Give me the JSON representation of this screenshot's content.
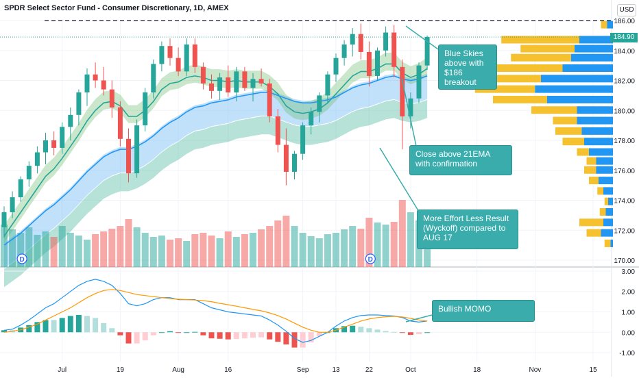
{
  "header": {
    "title": "SPDR Select Sector Fund - Consumer Discretionary, 1D, AMEX",
    "currency": "USD",
    "last_price": "184.90"
  },
  "callouts": [
    {
      "id": "blue-skies",
      "text": "Blue Skies above with $186 breakout"
    },
    {
      "id": "close-above",
      "text": "Close above 21EMA with confirmation"
    },
    {
      "id": "effort",
      "text": "More Effort Less Result (Wyckoff) compared to AUG 17"
    },
    {
      "id": "momo",
      "text": "Bullish MOMO"
    }
  ],
  "colors": {
    "up": "#26a69a",
    "down": "#ef5350",
    "ema_fast": "#26a69a",
    "ema_slow": "#2196f3",
    "macd": "#2196f3",
    "signal": "#ff9800",
    "vp_a": "#f5c12e",
    "vp_b": "#2196f3",
    "callout": "#3aacac"
  },
  "chart_data": [
    {
      "type": "candlestick",
      "title": "SPDR Select Sector Fund - Consumer Discretionary, 1D, AMEX",
      "y_ticks": [
        "186.00",
        "184.00",
        "182.00",
        "180.00",
        "178.00",
        "176.00",
        "174.00",
        "172.00",
        "170.00"
      ],
      "ylim": [
        169.8,
        186.4
      ],
      "x_ticks": [
        {
          "label": "Jul",
          "i": 7
        },
        {
          "label": "19",
          "i": 14
        },
        {
          "label": "Aug",
          "i": 21
        },
        {
          "label": "16",
          "i": 27
        },
        {
          "label": "Sep",
          "i": 36
        },
        {
          "label": "13",
          "i": 40
        },
        {
          "label": "22",
          "i": 44
        },
        {
          "label": "Oct",
          "i": 49
        },
        {
          "label": "18",
          "i": 57
        },
        {
          "label": "Nov",
          "i": 64
        },
        {
          "label": "15",
          "i": 71
        }
      ],
      "dividend_markers": [
        1,
        43
      ],
      "resistance": 186,
      "ohlc": [
        [
          172.2,
          173.6,
          171.5,
          173.2
        ],
        [
          173.2,
          174.6,
          172.8,
          174.2
        ],
        [
          174.2,
          175.6,
          173.9,
          175.4
        ],
        [
          175.4,
          176.6,
          174.9,
          176.3
        ],
        [
          176.3,
          177.6,
          175.8,
          177.2
        ],
        [
          177.2,
          178.5,
          176.4,
          178.0
        ],
        [
          178.0,
          178.6,
          177.0,
          177.5
        ],
        [
          177.5,
          179.2,
          177.1,
          178.9
        ],
        [
          178.9,
          180.2,
          178.0,
          179.7
        ],
        [
          179.7,
          181.4,
          179.0,
          181.2
        ],
        [
          181.2,
          182.8,
          180.3,
          182.4
        ],
        [
          182.4,
          183.2,
          181.5,
          182.0
        ],
        [
          182.0,
          182.9,
          181.0,
          181.4
        ],
        [
          181.4,
          182.0,
          179.5,
          180.2
        ],
        [
          180.2,
          180.6,
          177.6,
          178.1
        ],
        [
          178.1,
          178.8,
          175.2,
          175.8
        ],
        [
          175.8,
          179.4,
          175.5,
          179.0
        ],
        [
          179.0,
          181.5,
          178.6,
          181.2
        ],
        [
          181.2,
          183.4,
          180.8,
          183.1
        ],
        [
          183.1,
          184.6,
          182.6,
          184.3
        ],
        [
          184.3,
          184.8,
          183.0,
          183.5
        ],
        [
          183.5,
          184.2,
          182.3,
          182.6
        ],
        [
          182.6,
          184.8,
          182.3,
          184.4
        ],
        [
          184.4,
          184.8,
          182.5,
          182.9
        ],
        [
          182.9,
          183.2,
          181.4,
          181.8
        ],
        [
          181.8,
          182.4,
          180.8,
          181.3
        ],
        [
          181.3,
          182.5,
          180.7,
          182.2
        ],
        [
          182.2,
          183.0,
          180.9,
          181.2
        ],
        [
          181.2,
          182.9,
          180.6,
          182.6
        ],
        [
          182.6,
          182.9,
          181.3,
          181.5
        ],
        [
          181.5,
          182.5,
          180.6,
          182.1
        ],
        [
          182.1,
          182.8,
          181.6,
          181.8
        ],
        [
          181.8,
          182.1,
          179.2,
          179.6
        ],
        [
          179.6,
          180.1,
          177.2,
          177.7
        ],
        [
          177.7,
          178.8,
          175.0,
          175.9
        ],
        [
          175.9,
          177.3,
          175.4,
          177.1
        ],
        [
          177.1,
          179.2,
          176.7,
          179.0
        ],
        [
          179.0,
          180.2,
          178.4,
          179.9
        ],
        [
          179.9,
          181.2,
          179.2,
          181.0
        ],
        [
          181.0,
          182.6,
          180.5,
          182.4
        ],
        [
          182.4,
          183.8,
          181.9,
          183.5
        ],
        [
          183.5,
          184.7,
          183.0,
          184.4
        ],
        [
          184.4,
          185.5,
          183.6,
          185.1
        ],
        [
          185.1,
          185.8,
          183.4,
          183.9
        ],
        [
          183.9,
          184.6,
          181.6,
          182.3
        ],
        [
          182.3,
          184.2,
          182.0,
          184.0
        ],
        [
          184.0,
          185.6,
          183.6,
          185.2
        ],
        [
          185.2,
          185.7,
          182.2,
          182.9
        ],
        [
          182.9,
          183.4,
          177.4,
          179.6
        ],
        [
          179.6,
          181.2,
          178.8,
          180.8
        ],
        [
          180.8,
          183.2,
          180.5,
          183.0
        ],
        [
          183.0,
          185.0,
          182.7,
          184.9
        ]
      ],
      "volume": [
        0.62,
        0.55,
        0.5,
        0.58,
        0.47,
        0.52,
        0.44,
        0.6,
        0.5,
        0.46,
        0.4,
        0.48,
        0.52,
        0.56,
        0.6,
        0.7,
        0.58,
        0.5,
        0.44,
        0.46,
        0.4,
        0.42,
        0.38,
        0.48,
        0.5,
        0.46,
        0.42,
        0.52,
        0.44,
        0.48,
        0.5,
        0.55,
        0.6,
        0.68,
        0.75,
        0.6,
        0.5,
        0.45,
        0.42,
        0.48,
        0.5,
        0.55,
        0.6,
        0.56,
        0.72,
        0.65,
        0.62,
        0.66,
        0.98,
        0.8,
        0.68,
        0.64
      ],
      "ema_fast": [
        171.6,
        172.4,
        173.2,
        174.0,
        174.8,
        175.6,
        176.1,
        176.8,
        177.6,
        178.4,
        179.3,
        180.0,
        180.5,
        180.6,
        180.3,
        179.6,
        179.6,
        180.0,
        180.6,
        181.4,
        181.8,
        181.9,
        182.2,
        182.3,
        182.2,
        182.0,
        182.0,
        181.9,
        182.0,
        181.9,
        181.9,
        181.9,
        181.6,
        181.1,
        180.3,
        179.9,
        179.8,
        179.9,
        180.1,
        180.5,
        181.1,
        181.7,
        182.3,
        182.6,
        182.6,
        182.8,
        183.1,
        183.1,
        182.5,
        182.2,
        182.4,
        182.8
      ],
      "ema_slow": [
        171.0,
        171.4,
        171.8,
        172.3,
        172.8,
        173.3,
        173.7,
        174.2,
        174.7,
        175.3,
        175.9,
        176.4,
        176.9,
        177.2,
        177.4,
        177.4,
        177.6,
        177.9,
        178.3,
        178.8,
        179.2,
        179.5,
        179.9,
        180.2,
        180.3,
        180.5,
        180.6,
        180.7,
        180.9,
        181.0,
        181.1,
        181.2,
        181.2,
        181.0,
        180.8,
        180.6,
        180.5,
        180.5,
        180.6,
        180.7,
        180.9,
        181.2,
        181.5,
        181.7,
        181.8,
        182.0,
        182.2,
        182.3,
        182.1,
        182.0,
        182.1,
        182.3
      ]
    },
    {
      "type": "volume_profile",
      "y_ticks": [
        "186.00",
        "184.00",
        "182.00",
        "180.00",
        "178.00",
        "176.00",
        "174.00",
        "172.00",
        "170.00"
      ],
      "rows": [
        {
          "price": 185.7,
          "a": 0.05,
          "b": 0.05
        },
        {
          "price": 184.7,
          "a": 0.65,
          "b": 0.28
        },
        {
          "price": 184.1,
          "a": 0.45,
          "b": 0.32
        },
        {
          "price": 183.5,
          "a": 0.5,
          "b": 0.35
        },
        {
          "price": 182.8,
          "a": 0.55,
          "b": 0.42
        },
        {
          "price": 182.1,
          "a": 0.52,
          "b": 0.6
        },
        {
          "price": 181.4,
          "a": 0.5,
          "b": 0.65
        },
        {
          "price": 180.7,
          "a": 0.45,
          "b": 0.55
        },
        {
          "price": 180.0,
          "a": 0.38,
          "b": 0.3
        },
        {
          "price": 179.3,
          "a": 0.2,
          "b": 0.3
        },
        {
          "price": 178.6,
          "a": 0.22,
          "b": 0.26
        },
        {
          "price": 177.9,
          "a": 0.18,
          "b": 0.24
        },
        {
          "price": 177.2,
          "a": 0.1,
          "b": 0.2
        },
        {
          "price": 176.6,
          "a": 0.08,
          "b": 0.14
        },
        {
          "price": 176.0,
          "a": 0.1,
          "b": 0.14
        },
        {
          "price": 175.3,
          "a": 0.08,
          "b": 0.12
        },
        {
          "price": 174.6,
          "a": 0.05,
          "b": 0.08
        },
        {
          "price": 173.9,
          "a": 0.03,
          "b": 0.04
        },
        {
          "price": 173.2,
          "a": 0.05,
          "b": 0.06
        },
        {
          "price": 172.5,
          "a": 0.2,
          "b": 0.08
        },
        {
          "price": 171.8,
          "a": 0.12,
          "b": 0.1
        },
        {
          "price": 171.1,
          "a": 0.05,
          "b": 0.02
        }
      ]
    },
    {
      "type": "macd",
      "y_ticks": [
        "3.00",
        "2.00",
        "1.00",
        "0.00",
        "-1.00"
      ],
      "ylim": [
        -1.1,
        3.1
      ],
      "macd": [
        0.1,
        0.15,
        0.35,
        0.6,
        0.9,
        1.2,
        1.4,
        1.7,
        2.0,
        2.3,
        2.5,
        2.6,
        2.5,
        2.3,
        1.9,
        1.4,
        1.3,
        1.4,
        1.6,
        1.7,
        1.7,
        1.6,
        1.6,
        1.6,
        1.4,
        1.2,
        1.1,
        1.0,
        0.95,
        0.9,
        0.85,
        0.8,
        0.6,
        0.35,
        0.05,
        -0.3,
        -0.5,
        -0.4,
        -0.2,
        0.0,
        0.3,
        0.55,
        0.72,
        0.82,
        0.85,
        0.85,
        0.82,
        0.8,
        0.72,
        0.55,
        0.5,
        0.55
      ],
      "signal": [
        0.0,
        0.05,
        0.12,
        0.25,
        0.4,
        0.6,
        0.8,
        1.0,
        1.2,
        1.45,
        1.7,
        1.9,
        2.05,
        2.1,
        2.05,
        1.95,
        1.85,
        1.8,
        1.75,
        1.7,
        1.65,
        1.62,
        1.6,
        1.58,
        1.55,
        1.5,
        1.42,
        1.35,
        1.28,
        1.2,
        1.12,
        1.05,
        0.95,
        0.82,
        0.65,
        0.45,
        0.25,
        0.1,
        0.0,
        0.0,
        0.1,
        0.25,
        0.4,
        0.55,
        0.65,
        0.72,
        0.76,
        0.78,
        0.75,
        0.68,
        0.6,
        0.55
      ]
    }
  ]
}
